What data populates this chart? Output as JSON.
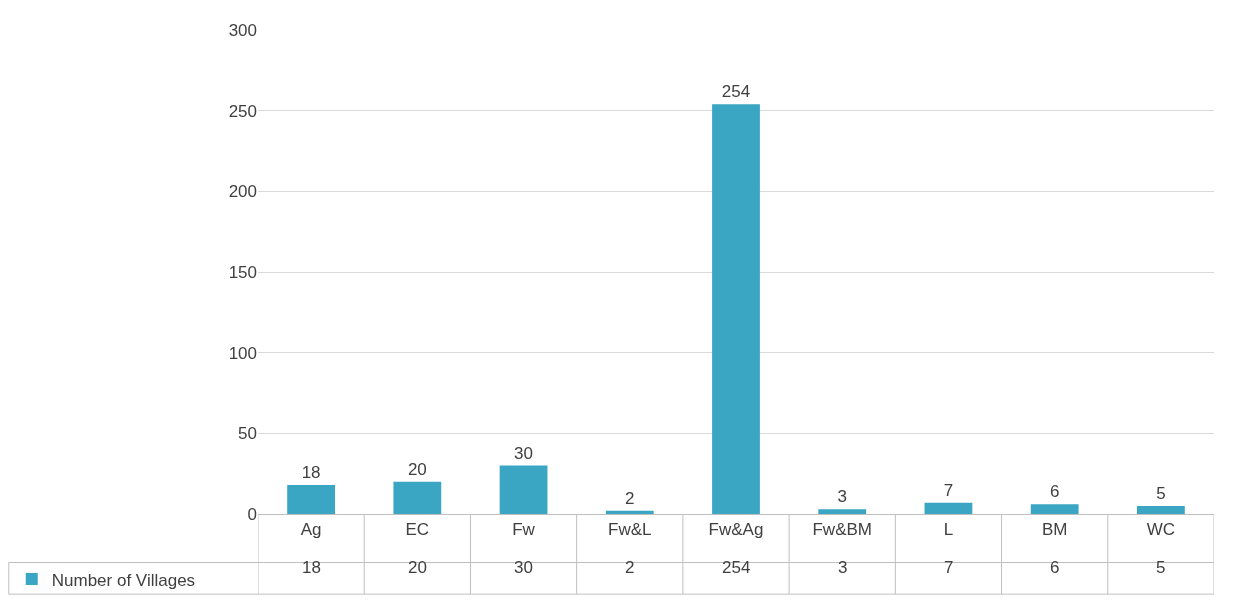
{
  "chart_data": {
    "type": "bar",
    "categories": [
      "Ag",
      "EC",
      "Fw",
      "Fw&L",
      "Fw&Ag",
      "Fw&BM",
      "L",
      "BM",
      "WC"
    ],
    "series": [
      {
        "name": "Number of Villages",
        "color": "#3aa6c4",
        "values": [
          18,
          20,
          30,
          2,
          254,
          3,
          7,
          6,
          5
        ],
        "value_labels": [
          "18",
          "20",
          "30",
          "2",
          "254",
          "3",
          "7",
          "6",
          "5"
        ]
      }
    ],
    "ylim": [
      0,
      300
    ],
    "yticks": [
      0,
      50,
      100,
      150,
      200,
      250,
      300
    ],
    "annotations": [
      "18",
      "20",
      "30",
      "2",
      "254",
      "3",
      "7",
      "6",
      "5"
    ],
    "grid": "y",
    "legend": "bottom left"
  }
}
